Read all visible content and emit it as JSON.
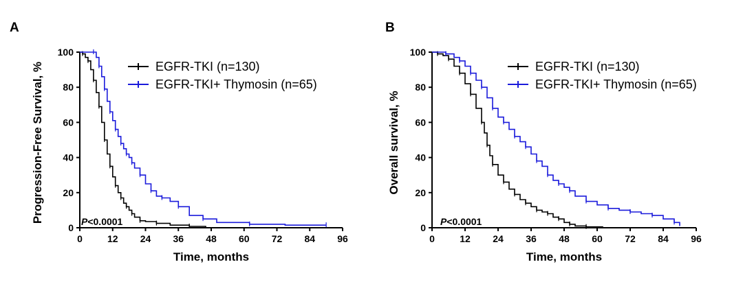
{
  "chart_data": [
    {
      "type": "line",
      "panel_label": "A",
      "xlabel": "Time, months",
      "ylabel": "Progression-Free Survival, %",
      "xlim": [
        0,
        96
      ],
      "ylim": [
        0,
        100
      ],
      "xticks": [
        0,
        12,
        24,
        36,
        48,
        60,
        72,
        84,
        96
      ],
      "yticks": [
        0,
        20,
        40,
        60,
        80,
        100
      ],
      "annotation": {
        "italic": "P",
        "rest": "<0.0001"
      },
      "legend_position": "top-right",
      "series": [
        {
          "name": "EGFR-TKI",
          "legend_label": "EGFR-TKI (n=130)",
          "color": "#000000",
          "x": [
            0,
            1,
            2,
            3,
            4,
            5,
            6,
            7,
            8,
            9,
            10,
            11,
            12,
            13,
            14,
            15,
            16,
            17,
            18,
            19,
            20,
            22,
            24,
            28,
            33,
            40,
            46
          ],
          "y": [
            100,
            99,
            97,
            95,
            90,
            84,
            77,
            69,
            60,
            50,
            42,
            35,
            29,
            24,
            20,
            17,
            14,
            12,
            10,
            8,
            6,
            4,
            3.5,
            2.5,
            1.5,
            0.8,
            0
          ]
        },
        {
          "name": "EGFR-TKI+ Thymosin",
          "legend_label": "EGFR-TKI+ Thymosin (n=65)",
          "color": "#1a1adb",
          "x": [
            0,
            5,
            6,
            7,
            8,
            9,
            10,
            11,
            12,
            13,
            14,
            15,
            16,
            17,
            18,
            19,
            20,
            22,
            24,
            26,
            28,
            30,
            33,
            36,
            40,
            45,
            50,
            62,
            75,
            90
          ],
          "y": [
            100,
            100,
            97,
            92,
            86,
            79,
            72,
            66,
            61,
            56,
            52,
            48,
            45,
            42,
            40,
            37,
            34,
            30,
            25,
            21,
            18,
            17,
            15,
            12,
            7,
            5,
            3,
            2,
            1.5,
            1.5
          ]
        }
      ]
    },
    {
      "type": "line",
      "panel_label": "B",
      "xlabel": "Time, months",
      "ylabel": "Overall survival, %",
      "xlim": [
        0,
        96
      ],
      "ylim": [
        0,
        100
      ],
      "xticks": [
        0,
        12,
        24,
        36,
        48,
        60,
        72,
        84,
        96
      ],
      "yticks": [
        0,
        20,
        40,
        60,
        80,
        100
      ],
      "annotation": {
        "italic": "P",
        "rest": "<0.0001"
      },
      "legend_position": "top-right",
      "series": [
        {
          "name": "EGFR-TKI",
          "legend_label": "EGFR-TKI (n=130)",
          "color": "#000000",
          "x": [
            0,
            2,
            4,
            6,
            8,
            10,
            12,
            14,
            16,
            18,
            19,
            20,
            21,
            22,
            24,
            26,
            28,
            30,
            32,
            34,
            36,
            38,
            40,
            42,
            44,
            46,
            48,
            50,
            52,
            56,
            62
          ],
          "y": [
            100,
            99,
            98,
            96,
            92,
            88,
            82,
            76,
            68,
            60,
            54,
            47,
            41,
            36,
            30,
            26,
            22,
            19,
            16,
            14,
            12,
            10,
            9,
            8,
            6,
            5,
            3,
            2,
            1,
            0.5,
            0
          ]
        },
        {
          "name": "EGFR-TKI+ Thymosin",
          "legend_label": "EGFR-TKI+ Thymosin (n=65)",
          "color": "#1a1adb",
          "x": [
            0,
            5,
            8,
            10,
            12,
            14,
            16,
            18,
            20,
            22,
            24,
            26,
            28,
            30,
            32,
            34,
            36,
            38,
            40,
            42,
            44,
            46,
            48,
            50,
            52,
            56,
            60,
            64,
            68,
            72,
            76,
            80,
            84,
            88,
            90
          ],
          "y": [
            100,
            99,
            97,
            95,
            92,
            88,
            84,
            80,
            74,
            68,
            63,
            60,
            56,
            52,
            49,
            46,
            42,
            38,
            35,
            30,
            27,
            25,
            23,
            21,
            18,
            15,
            13,
            11,
            10,
            9,
            8,
            7,
            5,
            3,
            1
          ]
        }
      ]
    }
  ]
}
